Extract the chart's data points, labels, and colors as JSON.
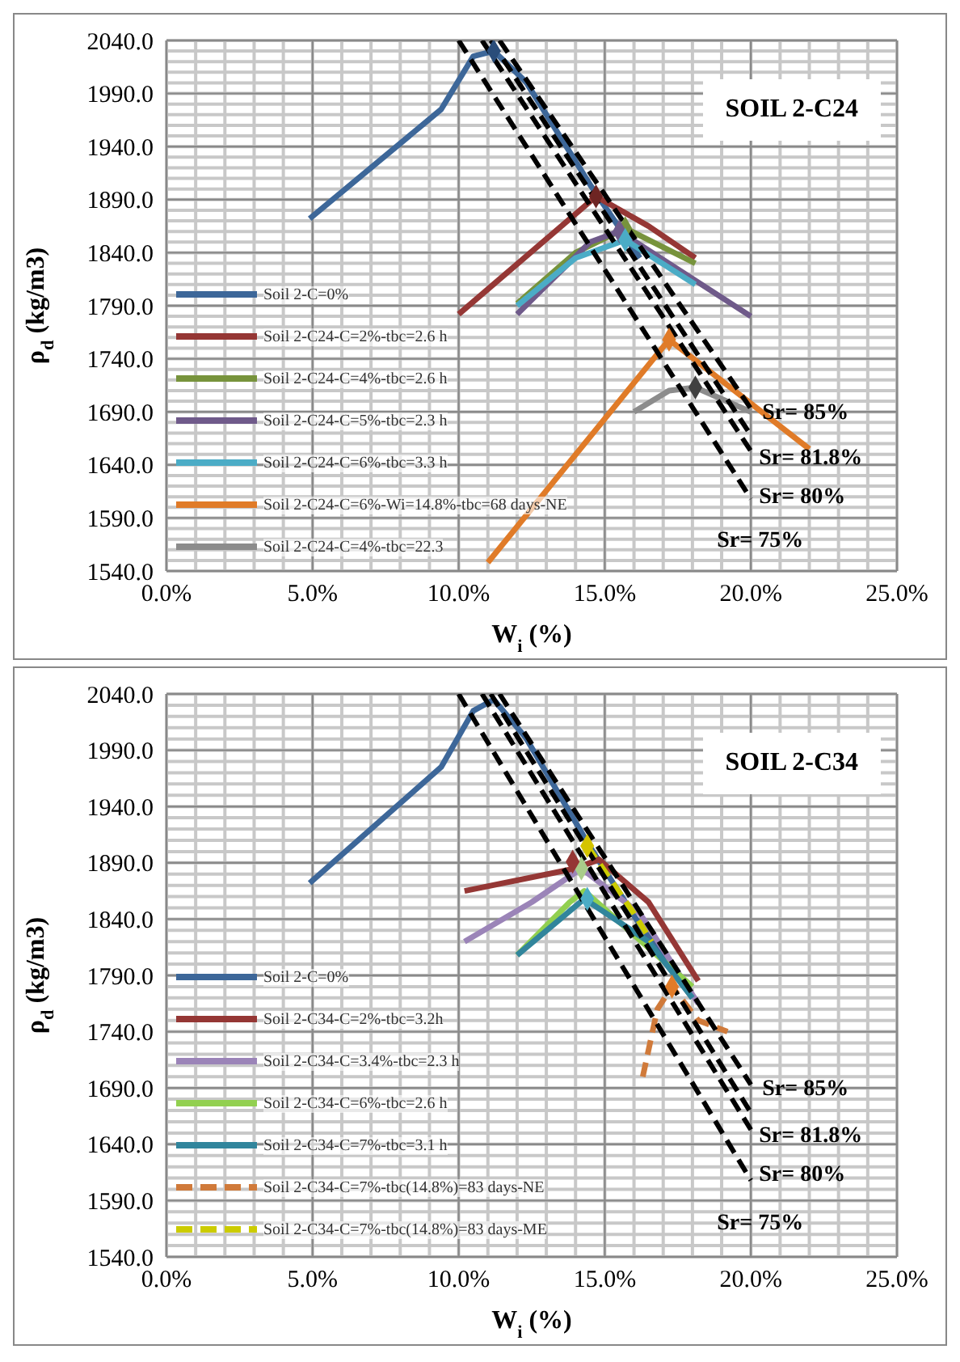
{
  "chart_data": [
    {
      "type": "line",
      "title": "SOIL 2-C24",
      "xlabel": "W$_{i}$ (%)",
      "ylabel": "ρ$_{d}$ (kg/m3)",
      "grid": true,
      "legend": "left",
      "xlim": [
        0,
        25
      ],
      "xticks": [
        {
          "value": 0,
          "label": "0.0%"
        },
        {
          "value": 5,
          "label": "5.0%"
        },
        {
          "value": 10,
          "label": "10.0%"
        },
        {
          "value": 15,
          "label": "15.0%"
        },
        {
          "value": 20,
          "label": "20.0%"
        },
        {
          "value": 25,
          "label": "25.0%"
        }
      ],
      "ylim": [
        1540,
        2040
      ],
      "yticks": [
        {
          "value": 1540,
          "label": "1540.0"
        },
        {
          "value": 1590,
          "label": "1590.0"
        },
        {
          "value": 1640,
          "label": "1640.0"
        },
        {
          "value": 1690,
          "label": "1690.0"
        },
        {
          "value": 1740,
          "label": "1740.0"
        },
        {
          "value": 1790,
          "label": "1790.0"
        },
        {
          "value": 1840,
          "label": "1840.0"
        },
        {
          "value": 1890,
          "label": "1890.0"
        },
        {
          "value": 1940,
          "label": "1940.0"
        },
        {
          "value": 1990,
          "label": "1990.0"
        },
        {
          "value": 2040,
          "label": "2040.0"
        }
      ],
      "series": [
        {
          "name": "Soil 2-C=0%",
          "color": "#3d6799",
          "marker": "none",
          "line_style": "solid",
          "x": [
            4.9,
            9.4,
            10.5,
            11.2,
            12.3,
            14.5,
            16.2
          ],
          "values": [
            1872,
            1975,
            2025,
            2030,
            2001,
            1904,
            1835
          ]
        },
        {
          "name": "Soil 2-C24-C=2%-tbc=2.6 h",
          "color": "#953735",
          "marker": "none",
          "line_style": "solid",
          "x": [
            10.0,
            14.7,
            16.5,
            18.1
          ],
          "values": [
            1782,
            1893,
            1865,
            1835
          ]
        },
        {
          "name": "Soil 2-C24-C=4%-tbc=2.6 h",
          "color": "#77933c",
          "marker": "none",
          "line_style": "solid",
          "x": [
            12.0,
            14.0,
            15.7,
            18.1
          ],
          "values": [
            1792,
            1840,
            1863,
            1830
          ]
        },
        {
          "name": "Soil 2-C24-C=5%-tbc=2.3 h",
          "color": "#6f5a8a",
          "marker": "none",
          "line_style": "solid",
          "x": [
            12.0,
            14.5,
            15.5,
            20.0
          ],
          "values": [
            1782,
            1850,
            1860,
            1780
          ]
        },
        {
          "name": "Soil 2-C24-C=6%-tbc=3.3 h",
          "color": "#4bacc6",
          "marker": "none",
          "line_style": "solid",
          "x": [
            12.0,
            14.0,
            15.7,
            18.1
          ],
          "values": [
            1790,
            1835,
            1852,
            1810
          ]
        },
        {
          "name": "Soil 2-C24-C=6%-Wi=14.8%-tbc=68 days-NE",
          "color": "#e07b28",
          "marker": "none",
          "line_style": "solid",
          "x": [
            11.0,
            17.2,
            22.0
          ],
          "values": [
            1548,
            1758,
            1655
          ]
        },
        {
          "name": "Soil 2-C24-C=4%-tbc=22.3",
          "color": "#8c8c8c",
          "marker": "none",
          "line_style": "solid",
          "x": [
            16.0,
            17.2,
            18.1,
            20.0
          ],
          "values": [
            1690,
            1710,
            1713,
            1690
          ]
        },
        {
          "color": "#000000",
          "marker": "none",
          "line_style": "dashed",
          "x": [
            11.4,
            20.0
          ],
          "values": [
            2040,
            1693
          ]
        },
        {
          "color": "#000000",
          "marker": "none",
          "line_style": "dashed",
          "x": [
            11.1,
            20.0
          ],
          "values": [
            2040,
            1668
          ]
        },
        {
          "color": "#000000",
          "marker": "none",
          "line_style": "dashed",
          "x": [
            10.8,
            20.0
          ],
          "values": [
            2040,
            1653
          ]
        },
        {
          "color": "#000000",
          "marker": "none",
          "line_style": "dashed",
          "x": [
            10.0,
            20.0
          ],
          "values": [
            2040,
            1608
          ]
        },
        {
          "type": "scatter",
          "marker": "diamond",
          "x": [
            11.2,
            14.7,
            15.7,
            15.5,
            15.7,
            17.2,
            18.1
          ],
          "values": [
            2030,
            1893,
            1863,
            1860,
            1852,
            1758,
            1713
          ],
          "colors": [
            "#2a4d7a",
            "#6e2523",
            "#77933c",
            "#6f5a8a",
            "#4bacc6",
            "#e07b28",
            "#404040"
          ]
        }
      ],
      "annotations": [
        "Sr= 85%",
        "Sr= 81.8%",
        "Sr= 80%",
        "Sr= 75%"
      ]
    },
    {
      "type": "line",
      "title": "SOIL 2-C34",
      "xlabel": "W$_{i}$ (%)",
      "ylabel": "ρ$_{d}$ (kg/m3)",
      "grid": true,
      "legend": "left",
      "xlim": [
        0,
        25
      ],
      "xticks": [
        {
          "value": 0,
          "label": "0.0%"
        },
        {
          "value": 5,
          "label": "5.0%"
        },
        {
          "value": 10,
          "label": "10.0%"
        },
        {
          "value": 15,
          "label": "15.0%"
        },
        {
          "value": 20,
          "label": "20.0%"
        },
        {
          "value": 25,
          "label": "25.0%"
        }
      ],
      "ylim": [
        1540,
        2040
      ],
      "yticks": [
        {
          "value": 1540,
          "label": "1540.0"
        },
        {
          "value": 1590,
          "label": "1590.0"
        },
        {
          "value": 1640,
          "label": "1640.0"
        },
        {
          "value": 1690,
          "label": "1690.0"
        },
        {
          "value": 1740,
          "label": "1740.0"
        },
        {
          "value": 1790,
          "label": "1790.0"
        },
        {
          "value": 1840,
          "label": "1840.0"
        },
        {
          "value": 1890,
          "label": "1890.0"
        },
        {
          "value": 1940,
          "label": "1940.0"
        },
        {
          "value": 1990,
          "label": "1990.0"
        },
        {
          "value": 2040,
          "label": "2040.0"
        }
      ],
      "series": [
        {
          "name": "Soil 2-C=0%",
          "color": "#3d6799",
          "marker": "none",
          "line_style": "solid",
          "x": [
            4.9,
            9.4,
            10.5,
            11.2,
            12.3,
            14.5,
            16.2,
            18.0
          ],
          "values": [
            1872,
            1975,
            2025,
            2035,
            2001,
            1904,
            1835,
            1770
          ]
        },
        {
          "name": "Soil 2-C34-C=2%-tbc=3.2h",
          "color": "#953735",
          "marker": "none",
          "line_style": "solid",
          "x": [
            10.2,
            14.0,
            14.8,
            16.5,
            18.2
          ],
          "values": [
            1865,
            1885,
            1893,
            1855,
            1785
          ]
        },
        {
          "name": "Soil 2-C34-C=3.4%-tbc=2.3 h",
          "color": "#9b84b8",
          "marker": "none",
          "line_style": "solid",
          "x": [
            10.2,
            12.5,
            14.2,
            16.2,
            18.2
          ],
          "values": [
            1820,
            1855,
            1885,
            1845,
            1765
          ]
        },
        {
          "name": "Soil 2-C34-C=6%-tbc=2.6 h",
          "color": "#92d050",
          "marker": "none",
          "line_style": "solid",
          "x": [
            12.0,
            13.8,
            14.3,
            18.0
          ],
          "values": [
            1808,
            1855,
            1865,
            1780
          ]
        },
        {
          "name": "Soil 2-C34-C=7%-tbc=3.1 h",
          "color": "#31859c",
          "marker": "none",
          "line_style": "solid",
          "x": [
            12.0,
            14.3,
            16.5,
            18.0
          ],
          "values": [
            1808,
            1858,
            1820,
            1770
          ]
        },
        {
          "name": "Soil 2-C34-C=7%-tbc(14.8%)=83 days-NE",
          "color": "#d07a3a",
          "marker": "none",
          "line_style": "dashed",
          "x": [
            16.3,
            16.8,
            17.3,
            18.2,
            19.2
          ],
          "values": [
            1700,
            1760,
            1780,
            1750,
            1740
          ]
        },
        {
          "name": "Soil 2-C34-C=7%-tbc(14.8%)=83 days-ME",
          "color": "#cccc00",
          "marker": "none",
          "line_style": "dashed",
          "x": [
            14.4,
            15.2,
            16.0,
            16.6
          ],
          "values": [
            1905,
            1875,
            1845,
            1820
          ]
        },
        {
          "color": "#000000",
          "marker": "none",
          "line_style": "dashed",
          "x": [
            11.4,
            20.0
          ],
          "values": [
            2040,
            1693
          ]
        },
        {
          "color": "#000000",
          "marker": "none",
          "line_style": "dashed",
          "x": [
            11.1,
            20.0
          ],
          "values": [
            2040,
            1668
          ]
        },
        {
          "color": "#000000",
          "marker": "none",
          "line_style": "dashed",
          "x": [
            10.8,
            20.0
          ],
          "values": [
            2040,
            1653
          ]
        },
        {
          "color": "#000000",
          "marker": "none",
          "line_style": "dashed",
          "x": [
            10.0,
            20.0
          ],
          "values": [
            2040,
            1608
          ]
        },
        {
          "type": "scatter",
          "marker": "diamond",
          "x": [
            14.4,
            14.2,
            14.4,
            17.3,
            13.9
          ],
          "values": [
            1905,
            1885,
            1858,
            1780,
            1891
          ],
          "colors": [
            "#d4c400",
            "#a9cd8a",
            "#4bacc6",
            "#e07b28",
            "#953735"
          ]
        }
      ],
      "annotations": [
        "Sr= 85%",
        "Sr= 81.8%",
        "Sr= 80%",
        "Sr= 75%"
      ]
    }
  ]
}
